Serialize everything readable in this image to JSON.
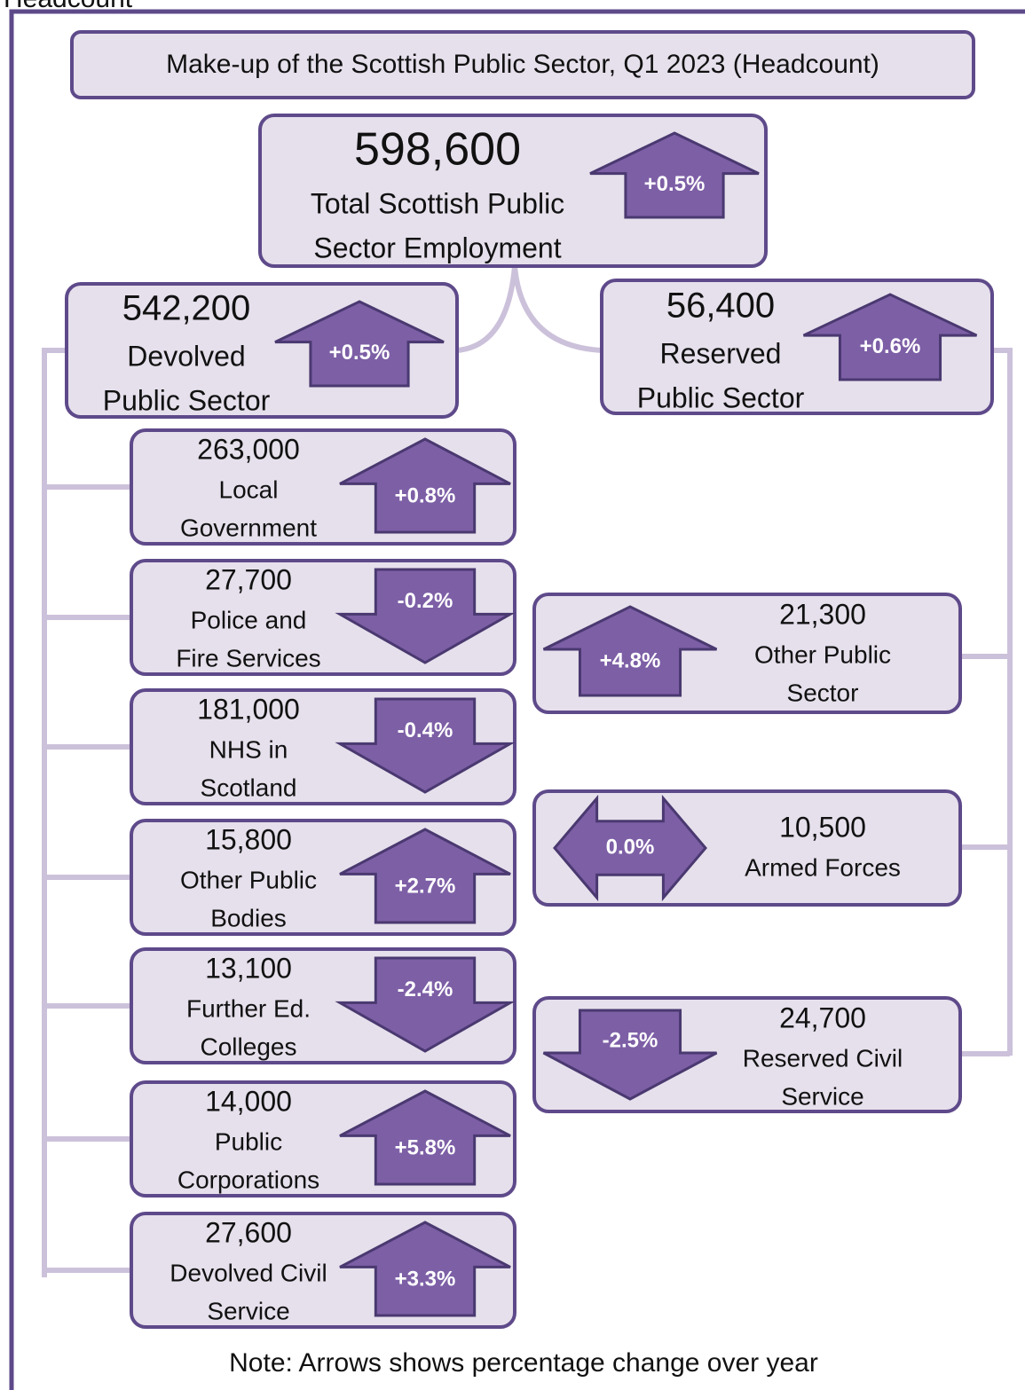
{
  "header": {
    "cropped_label": "Headcount"
  },
  "title": "Make-up of the Scottish Public Sector, Q1 2023 (Headcount)",
  "total": {
    "value": "598,600",
    "label_lines": [
      "Total Scottish Public",
      "Sector Employment"
    ],
    "change": "+0.5%",
    "direction": "up"
  },
  "devolved": {
    "value": "542,200",
    "label_lines": [
      "Devolved",
      "Public Sector"
    ],
    "change": "+0.5%",
    "direction": "up"
  },
  "reserved": {
    "value": "56,400",
    "label_lines": [
      "Reserved",
      "Public Sector"
    ],
    "change": "+0.6%",
    "direction": "up"
  },
  "devolved_items": [
    {
      "value": "263,000",
      "label_lines": [
        "Local",
        "Government"
      ],
      "change": "+0.8%",
      "direction": "up"
    },
    {
      "value": "27,700",
      "label_lines": [
        "Police and",
        "Fire Services"
      ],
      "change": "-0.2%",
      "direction": "down"
    },
    {
      "value": "181,000",
      "label_lines": [
        "NHS in",
        "Scotland"
      ],
      "change": "-0.4%",
      "direction": "down"
    },
    {
      "value": "15,800",
      "label_lines": [
        "Other Public",
        "Bodies"
      ],
      "change": "+2.7%",
      "direction": "up"
    },
    {
      "value": "13,100",
      "label_lines": [
        "Further Ed.",
        "Colleges"
      ],
      "change": "-2.4%",
      "direction": "down"
    },
    {
      "value": "14,000",
      "label_lines": [
        "Public",
        "Corporations"
      ],
      "change": "+5.8%",
      "direction": "up"
    },
    {
      "value": "27,600",
      "label_lines": [
        "Devolved Civil",
        "Service"
      ],
      "change": "+3.3%",
      "direction": "up"
    }
  ],
  "reserved_items": [
    {
      "value": "21,300",
      "label_lines": [
        "Other Public",
        "Sector"
      ],
      "change": "+4.8%",
      "direction": "up"
    },
    {
      "value": "10,500",
      "label_lines": [
        "Armed Forces"
      ],
      "change": "0.0%",
      "direction": "both"
    },
    {
      "value": "24,700",
      "label_lines": [
        "Reserved Civil",
        "Service"
      ],
      "change": "-2.5%",
      "direction": "down"
    }
  ],
  "note": "Note: Arrows shows percentage change over year"
}
